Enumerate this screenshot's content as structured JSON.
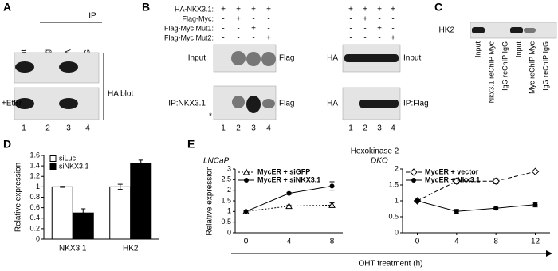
{
  "panels": {
    "a": {
      "label": "A",
      "ip": "IP",
      "columns": [
        "Input",
        "Flag",
        "HA",
        "IgG"
      ],
      "row_label": "+EtBr",
      "blot": "HA blot",
      "lanes": [
        "1",
        "2",
        "3",
        "4"
      ]
    },
    "b": {
      "label": "B",
      "conditions": [
        "HA-NKX3.1:",
        "Flag-Myc:",
        "Flag-Myc Mut1:",
        "Flag-Myc Mut2:"
      ],
      "signs": [
        [
          "+",
          "+",
          "+",
          "+"
        ],
        [
          "-",
          "+",
          "-",
          "-"
        ],
        [
          "-",
          "-",
          "+",
          "-"
        ],
        [
          "-",
          "-",
          "-",
          "+"
        ]
      ],
      "left": {
        "rows": [
          "Input",
          "IP:NKX3.1"
        ],
        "blot": "Flag",
        "marker": "*",
        "lanes": [
          "1",
          "2",
          "3",
          "4"
        ]
      },
      "right": {
        "rows": [
          "Input",
          "IP:Flag"
        ],
        "blot": "HA",
        "lanes": [
          "1",
          "2",
          "3",
          "4"
        ]
      }
    },
    "c": {
      "label": "C",
      "blot": "HK2",
      "columns": [
        "Input",
        "Nkx3.1 reChIP Myc",
        "IgG reChIP IgG",
        "Input",
        "Myc reChIP Myc",
        "IgG reChIP IgG"
      ]
    },
    "d": {
      "label": "D"
    },
    "e": {
      "label": "E",
      "title": "Hexokinase 2",
      "xlabel": "OHT treatment (h)"
    }
  },
  "chart_data": [
    {
      "type": "bar",
      "ylabel": "Relative expression",
      "categories": [
        "NKX3.1",
        "HK2"
      ],
      "series": [
        {
          "name": "siLuc",
          "color": "#ffffff",
          "values": [
            1,
            1
          ],
          "errors": [
            0.01,
            0.05
          ]
        },
        {
          "name": "siNKX3.1",
          "color": "#000000",
          "values": [
            0.5,
            1.45
          ],
          "errors": [
            0.08,
            0.06
          ]
        }
      ],
      "ylim": [
        0,
        1.6
      ],
      "yticks": [
        0,
        0.2,
        0.4,
        0.6,
        0.8,
        1,
        1.2,
        1.4,
        1.6
      ],
      "legend": "top-left"
    },
    {
      "type": "line",
      "subtitle": "LNCaP",
      "ylabel": "Relative expression",
      "x": [
        0,
        4,
        8
      ],
      "xlim": [
        -1,
        9
      ],
      "xticks": [
        0,
        4,
        8
      ],
      "ylim": [
        0,
        3
      ],
      "yticks": [
        0,
        0.5,
        1,
        1.5,
        2,
        2.5,
        3
      ],
      "legend": "top-left",
      "series": [
        {
          "name": "MycER + siGFP",
          "color": "#000000",
          "dash": "dotted",
          "marker": "triangle-open",
          "values": [
            1,
            1.25,
            1.3
          ],
          "errors": [
            0.02,
            0.05,
            0.1
          ]
        },
        {
          "name": "MycER + siNKX3.1",
          "color": "#000000",
          "dash": "solid",
          "marker": "circle",
          "values": [
            1,
            1.85,
            2.2
          ],
          "errors": [
            0.02,
            0.05,
            0.2
          ]
        }
      ]
    },
    {
      "type": "line",
      "subtitle": "DKO",
      "x": [
        0,
        4,
        8,
        12
      ],
      "xlim": [
        -1.5,
        13.5
      ],
      "xticks": [
        0,
        4,
        8,
        12
      ],
      "ylim": [
        0,
        2
      ],
      "yticks": [
        0,
        0.5,
        1,
        1.5,
        2
      ],
      "legend": "top-left",
      "series": [
        {
          "name": "MycER + vector",
          "color": "#000000",
          "dash": "dashed",
          "marker": "diamond-open",
          "values": [
            1,
            1.62,
            1.62,
            1.92
          ],
          "errors": [
            0.02,
            0.08,
            0.08,
            0.02
          ]
        },
        {
          "name": "MycER + Nkx3.1",
          "color": "#000000",
          "dash": "solid",
          "marker": "circle",
          "values": [
            1,
            0.67,
            0.77,
            0.88
          ],
          "errors": [
            0.02,
            0.06,
            0.03,
            0.07
          ]
        }
      ]
    }
  ]
}
